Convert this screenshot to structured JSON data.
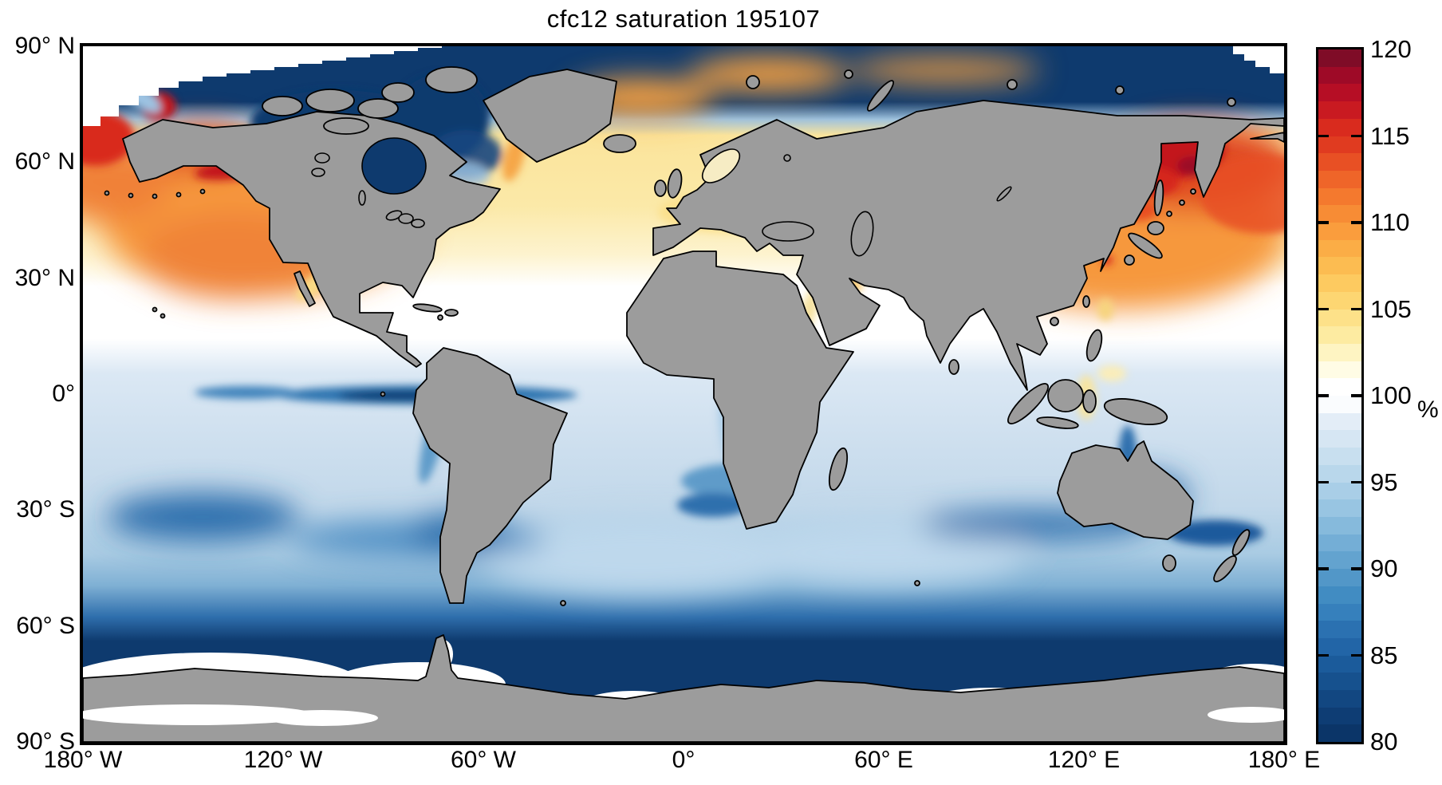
{
  "figure": {
    "title": "cfc12 saturation 195107",
    "background_color": "#ffffff",
    "land_color": "#9c9c9c",
    "coastline_color": "#000000"
  },
  "map": {
    "y_axis": {
      "tick_labels": [
        "90° N",
        "60° N",
        "30° N",
        "0°",
        "30° S",
        "60° S",
        "90° S"
      ]
    },
    "x_axis": {
      "tick_labels": [
        "180° W",
        "120° W",
        "60° W",
        "0°",
        "60° E",
        "120° E",
        "180° E"
      ]
    }
  },
  "colorbar": {
    "min": 80,
    "max": 120,
    "unit": "%",
    "tick_labels": [
      "120",
      "115",
      "110",
      "105",
      "100",
      "95",
      "90",
      "85",
      "80"
    ],
    "colors_bottom_to_top": [
      "#0b3568",
      "#0e3d74",
      "#124781",
      "#16518e",
      "#1b5b9b",
      "#2265a7",
      "#2b71b1",
      "#3680bc",
      "#418cc2",
      "#5297c8",
      "#63a3cf",
      "#74aed6",
      "#86badc",
      "#98c5e2",
      "#a9cee7",
      "#b9d7eb",
      "#c8dfef",
      "#d6e6f3",
      "#e3edf7",
      "#fafcfe",
      "#ffffff",
      "#fffce5",
      "#fef4c2",
      "#fdeba1",
      "#fde189",
      "#fdd672",
      "#fdca60",
      "#fcbc51",
      "#fbad46",
      "#fa9d3d",
      "#f78c35",
      "#f4792e",
      "#ef6529",
      "#e85024",
      "#e03b20",
      "#d92b1e",
      "#c91a21",
      "#b60e25",
      "#9e0a27",
      "#7f0c27"
    ]
  },
  "chart_data": {
    "type": "heatmap",
    "title": "cfc12 saturation 195107",
    "variable": "cfc12 saturation",
    "time_label": "195107",
    "units": "%",
    "projection": "equirectangular world map",
    "lon_ticks_deg": [
      -180,
      -120,
      -60,
      0,
      60,
      120,
      180
    ],
    "lat_ticks_deg": [
      90,
      60,
      30,
      0,
      -30,
      -60,
      -90
    ],
    "colorbar_range": [
      80,
      120
    ],
    "colorbar_ticks": [
      80,
      85,
      90,
      95,
      100,
      105,
      110,
      115,
      120
    ],
    "legend_position": "right",
    "regions_approx_values": [
      {
        "region": "Arctic Ocean (75-90N)",
        "value_pct": 80
      },
      {
        "region": "Bering Strait / Gulf of Alaska coast",
        "value_pct": 116
      },
      {
        "region": "Northeast Pacific (30-55N)",
        "value_pct": 108
      },
      {
        "region": "Northwest Pacific off Kamchatka / Japan (40-60N)",
        "value_pct": 117
      },
      {
        "region": "North Atlantic (35-65N)",
        "value_pct": 103
      },
      {
        "region": "Labrador Sea / Baffin Bay / Hudson Bay",
        "value_pct": 81
      },
      {
        "region": "Mediterranean Sea",
        "value_pct": 104
      },
      {
        "region": "Subtropics (12-30N)",
        "value_pct": 100
      },
      {
        "region": "Equatorial East Pacific upwelling tongue",
        "value_pct": 84
      },
      {
        "region": "Tropical oceans (10N-30S)",
        "value_pct": 96
      },
      {
        "region": "Southern mid-latitudes (30-55S)",
        "value_pct": 91
      },
      {
        "region": "Southern Ocean (55-70S)",
        "value_pct": 80
      }
    ]
  }
}
